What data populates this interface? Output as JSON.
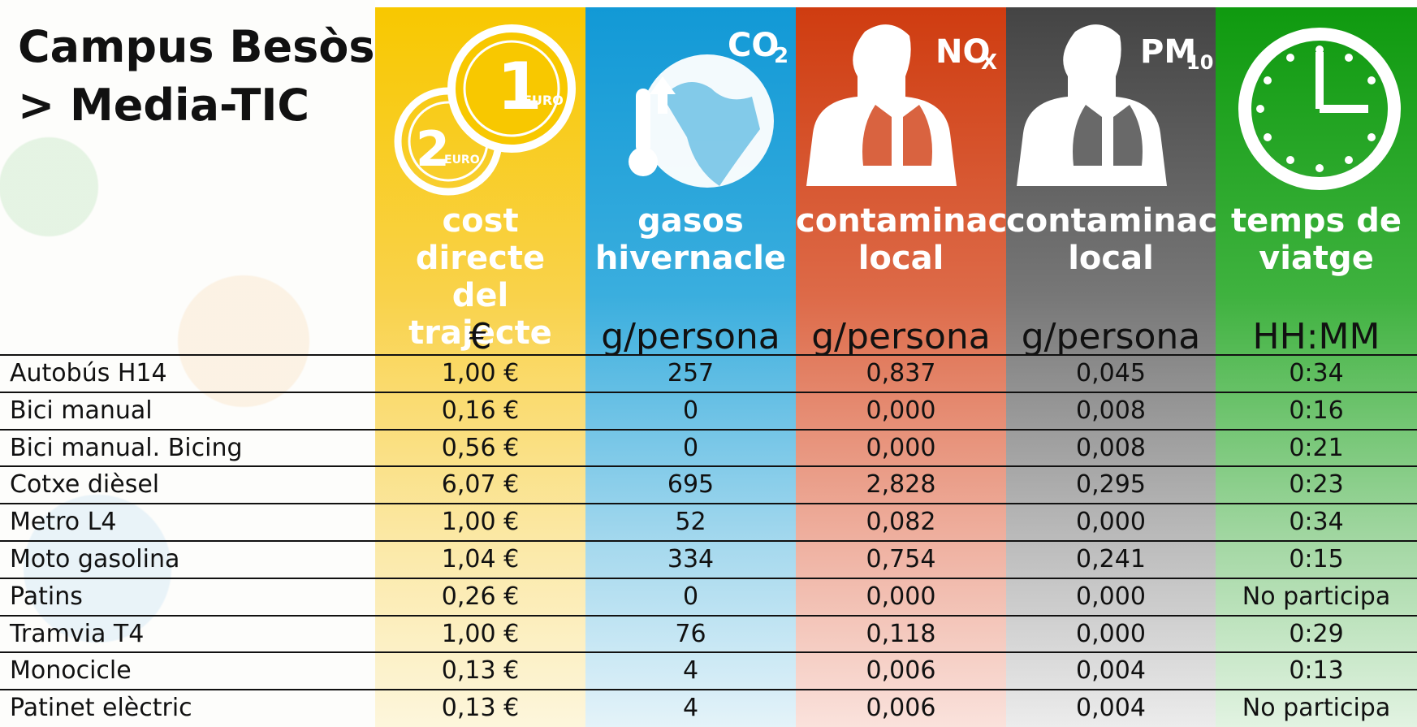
{
  "title": [
    "Campus Besòs",
    "> Media-TIC"
  ],
  "icons": {
    "coin_big": "1",
    "coin_big_unit": "EURO",
    "coin_small": "2",
    "coin_small_unit": "EURO",
    "co2": {
      "main": "CO",
      "sub": "2"
    },
    "nox": {
      "main": "NO",
      "sub": "X"
    },
    "pm10": {
      "main": "PM",
      "sub": "10"
    }
  },
  "columns": [
    {
      "header": [
        "cost directe",
        "del trajecte"
      ],
      "unit": "€"
    },
    {
      "header": [
        "gasos",
        "hivernacle"
      ],
      "unit": "g/persona"
    },
    {
      "header": [
        "contaminació",
        "local"
      ],
      "unit": "g/persona"
    },
    {
      "header": [
        "contaminació",
        "local"
      ],
      "unit": "g/persona"
    },
    {
      "header": [
        "temps de",
        "viatge"
      ],
      "unit": "HH:MM"
    }
  ],
  "table": {
    "rows": [
      [
        "Autobús H14",
        "1,00 €",
        "257",
        "0,837",
        "0,045",
        "0:34"
      ],
      [
        "Bici manual",
        "0,16 €",
        "0",
        "0,000",
        "0,008",
        "0:16"
      ],
      [
        "Bici manual. Bicing",
        "0,56 €",
        "0",
        "0,000",
        "0,008",
        "0:21"
      ],
      [
        "Cotxe dièsel",
        "6,07 €",
        "695",
        "2,828",
        "0,295",
        "0:23"
      ],
      [
        "Metro L4",
        "1,00 €",
        "52",
        "0,082",
        "0,000",
        "0:34"
      ],
      [
        "Moto gasolina",
        "1,04 €",
        "334",
        "0,754",
        "0,241",
        "0:15"
      ],
      [
        "Patins",
        "0,26 €",
        "0",
        "0,000",
        "0,000",
        "No participa"
      ],
      [
        "Tramvia T4",
        "1,00 €",
        "76",
        "0,118",
        "0,000",
        "0:29"
      ],
      [
        "Monocicle",
        "0,13 €",
        "4",
        "0,006",
        "0,004",
        "0:13"
      ],
      [
        "Patinet elèctric",
        "0,13 €",
        "4",
        "0,006",
        "0,004",
        "No participa"
      ]
    ]
  }
}
